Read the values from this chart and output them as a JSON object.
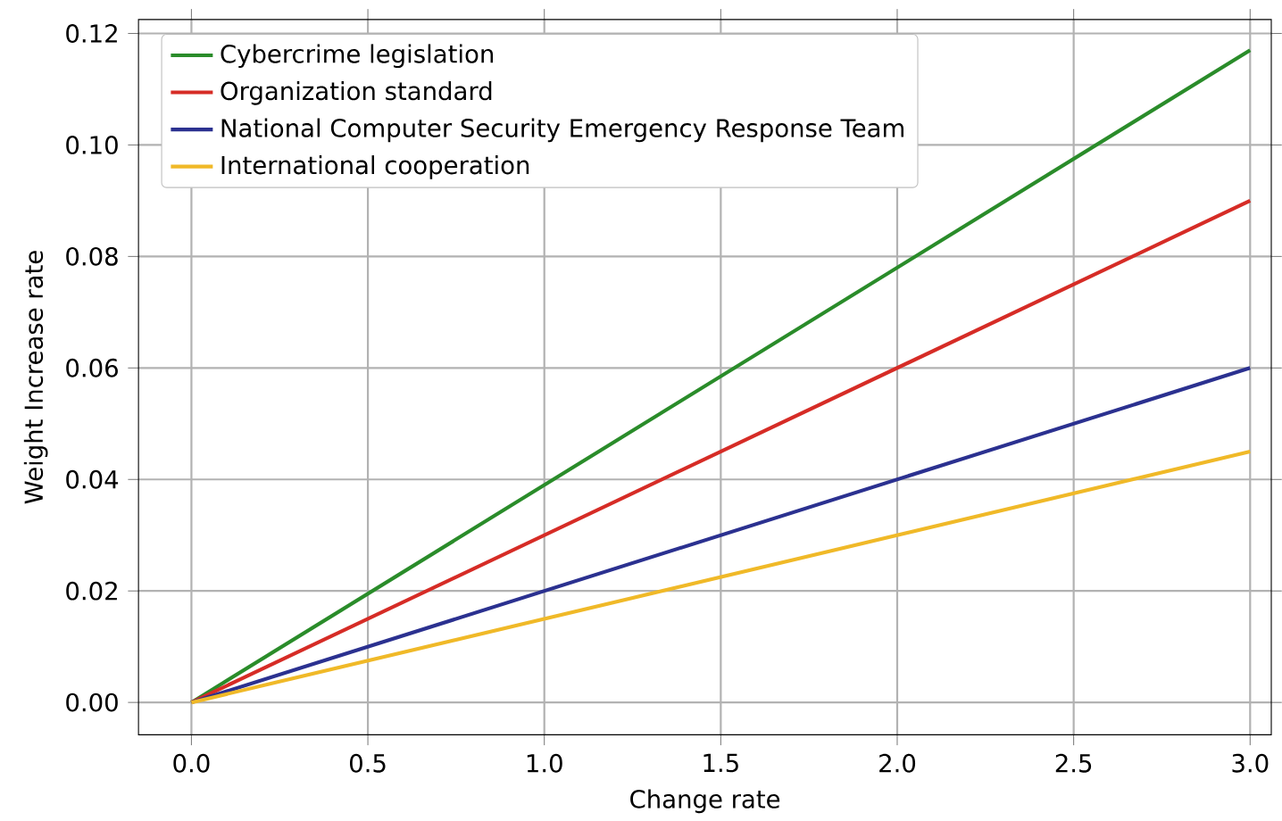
{
  "chart_data": {
    "type": "line",
    "xlabel": "Change rate",
    "ylabel": "Weight Increase rate",
    "x": [
      0,
      3
    ],
    "series": [
      {
        "name": "Cybercrime legislation",
        "color": "#2a8c2a",
        "values": [
          0,
          0.117
        ]
      },
      {
        "name": "Organization standard",
        "color": "#d62c26",
        "values": [
          0,
          0.09
        ]
      },
      {
        "name": "National Computer Security Emergency Response Team",
        "color": "#2b3190",
        "values": [
          0,
          0.06
        ]
      },
      {
        "name": "International cooperation",
        "color": "#f0b928",
        "values": [
          0,
          0.045
        ]
      }
    ],
    "xlim": [
      -0.15,
      3.06
    ],
    "ylim": [
      -0.0058,
      0.1225
    ],
    "xticks": [
      {
        "value": 0,
        "label": "0.0"
      },
      0.5,
      {
        "value": 1,
        "label": "1.0"
      },
      1.5,
      {
        "value": 2,
        "label": "2.0"
      },
      2.5,
      {
        "value": 3,
        "label": "3.0"
      }
    ],
    "yticks": [
      {
        "value": 0,
        "label": "0.00"
      },
      0.02,
      0.04,
      0.06,
      0.08,
      {
        "value": 0.1,
        "label": "0.10"
      },
      0.12
    ],
    "grid": true,
    "legend": "top left"
  }
}
